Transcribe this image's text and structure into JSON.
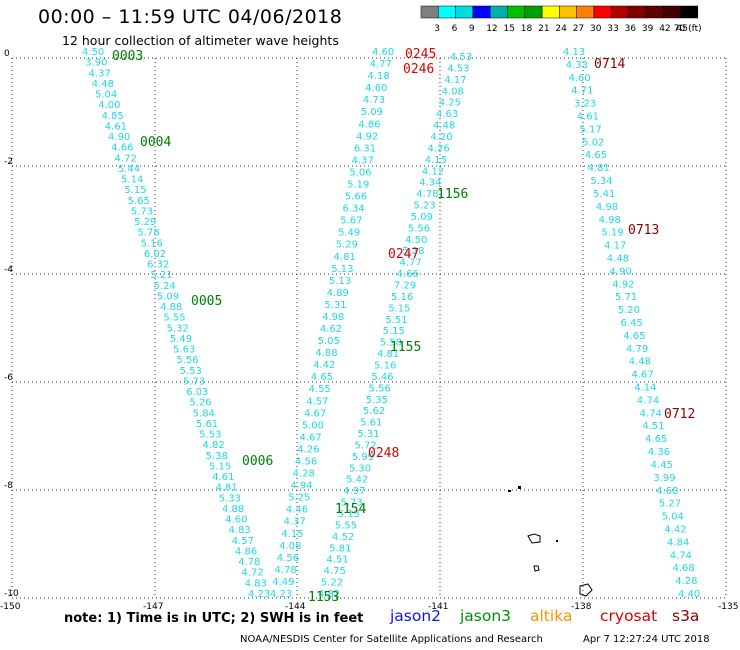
{
  "title": "00:00 – 11:59 UTC 04/06/2018",
  "subtitle": "12 hour collection of altimeter wave heights",
  "colorbar": {
    "labels": [
      "3",
      "6",
      "9",
      "12",
      "15",
      "18",
      "21",
      "24",
      "27",
      "30",
      "33",
      "36",
      "39",
      "42",
      "45",
      "70 (ft)"
    ],
    "colors": [
      "#7f7f7f",
      "#00ffff",
      "#00dddd",
      "#0000ff",
      "#00b0b0",
      "#00c000",
      "#00a000",
      "#ffff00",
      "#ffc000",
      "#ff8000",
      "#ff0000",
      "#b00000",
      "#800000",
      "#600000",
      "#400000",
      "#000000"
    ]
  },
  "axes": {
    "x_ticks": [
      "-150",
      "-147",
      "-144",
      "-141",
      "-138",
      "-135"
    ],
    "y_ticks": [
      "0",
      "-2",
      "-4",
      "-6",
      "-8",
      "-10"
    ]
  },
  "note": "note: 1) Time is in UTC; 2) SWH is in feet",
  "satellites": [
    {
      "name": "jason2",
      "color": "#1010ff"
    },
    {
      "name": "jason3",
      "color": "#009000"
    },
    {
      "name": "altika",
      "color": "#ff9000"
    },
    {
      "name": "cryosat",
      "color": "#e00000"
    },
    {
      "name": "s3a",
      "color": "#8b0000"
    }
  ],
  "credit": "NOAA/NESDIS Center for Satellite Applications and Research",
  "timestamp": "Apr  7 12:27:24 UTC 2018",
  "map_data": {
    "tracks": [
      {
        "id": "track-jason3-0003",
        "values": [
          "4.50",
          "3.90",
          "4.37",
          "4.48",
          "5.04",
          "4.00",
          "4.85",
          "4.61",
          "4.90",
          "4.66",
          "4.72",
          "5.44",
          "5.14",
          "5.15",
          "5.65",
          "5.73",
          "5.29",
          "5.78",
          "5.16",
          "6.02",
          "6.32",
          "5.21",
          "5.24",
          "5.09",
          "4.88",
          "5.55",
          "5.32",
          "5.49",
          "5.63",
          "5.56",
          "5.53",
          "5.73",
          "6.03",
          "5.26",
          "5.84",
          "5.61",
          "5.53",
          "4.82",
          "5.38",
          "5.15",
          "4.61",
          "4.81",
          "5.33",
          "4.88",
          "4.60",
          "4.83",
          "4.57",
          "4.86",
          "4.78",
          "4.72",
          "4.83",
          "4.23"
        ],
        "start": [
          82,
          55
        ],
        "end": [
          248,
          597
        ]
      },
      {
        "id": "track-jason3-0245",
        "values": [
          "4.60",
          "4.77",
          "4.18",
          "4.60",
          "4.73",
          "5.09",
          "4.86",
          "4.92",
          "6.31",
          "4.37",
          "5.06",
          "5.19",
          "5.66",
          "6.34",
          "5.67",
          "5.49",
          "5.29",
          "4.81",
          "5.13",
          "5.13",
          "4.89",
          "5.31",
          "4.98",
          "4.62",
          "5.05",
          "4.88",
          "4.42",
          "4.65",
          "4.55",
          "4.57",
          "4.67",
          "5.00",
          "4.67",
          "4.26",
          "4.56",
          "4.28",
          "4.94",
          "5.25",
          "4.46",
          "4.37",
          "4.15",
          "4.08",
          "4.56",
          "4.78",
          "4.49",
          "4.23"
        ],
        "start": [
          372,
          55
        ],
        "end": [
          270,
          597
        ]
      },
      {
        "id": "track-jason3-0246",
        "values": [
          "4.53",
          "4.53",
          "4.17",
          "4.08",
          "4.25",
          "4.63",
          "4.48",
          "4.20",
          "4.26",
          "4.15",
          "4.12",
          "4.34",
          "4.78",
          "5.23",
          "5.09",
          "5.56",
          "4.50",
          "5.28",
          "4.77",
          "4.66",
          "7.29",
          "5.16",
          "5.15",
          "5.51",
          "5.15",
          "5.58",
          "4.81",
          "5.16",
          "5.46",
          "5.56",
          "5.35",
          "5.62",
          "5.61",
          "5.31",
          "5.72",
          "5.99",
          "5.30",
          "5.42",
          "4.97",
          "5.73",
          "5.13",
          "5.55",
          "4.52",
          "5.81",
          "4.51",
          "4.75",
          "5.22",
          "4.82"
        ],
        "start": [
          450,
          60
        ],
        "end": [
          318,
          597
        ]
      },
      {
        "id": "track-s3a-0714",
        "values": [
          "4.13",
          "4.33",
          "4.60",
          "4.71",
          "3.23",
          "4.61",
          "5.17",
          "5.02",
          "4.65",
          "4.81",
          "5.34",
          "5.41",
          "4.98",
          "4.98",
          "5.19",
          "4.17",
          "4.48",
          "4.90",
          "4.92",
          "5.71",
          "5.20",
          "6.45",
          "4.65",
          "4.79",
          "4.48",
          "4.67",
          "4.14",
          "4.74",
          "4.74",
          "4.51",
          "4.65",
          "4.36",
          "4.45",
          "3.99",
          "4.68",
          "5.27",
          "5.04",
          "4.42",
          "4.84",
          "4.74",
          "4.68",
          "4.28",
          "4.40"
        ],
        "start": [
          563,
          55
        ],
        "end": [
          678,
          597
        ]
      }
    ],
    "pass_labels": [
      {
        "text": "0003",
        "color": "#008000"
      },
      {
        "text": "0004",
        "color": "#008000"
      },
      {
        "text": "0005",
        "color": "#008000"
      },
      {
        "text": "0006",
        "color": "#008000"
      },
      {
        "text": "0245",
        "color": "#dd0000"
      },
      {
        "text": "0246",
        "color": "#dd0000"
      },
      {
        "text": "0247",
        "color": "#dd0000"
      },
      {
        "text": "0248",
        "color": "#dd0000"
      },
      {
        "text": "1156",
        "color": "#008000"
      },
      {
        "text": "1155",
        "color": "#008000"
      },
      {
        "text": "1154",
        "color": "#008000"
      },
      {
        "text": "1153",
        "color": "#008000"
      },
      {
        "text": "0714",
        "color": "#8b0000"
      },
      {
        "text": "0713",
        "color": "#8b0000"
      },
      {
        "text": "0712",
        "color": "#8b0000"
      }
    ]
  }
}
